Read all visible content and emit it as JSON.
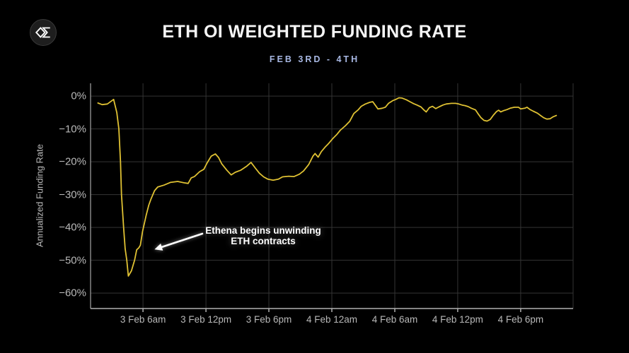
{
  "header": {
    "title": "ETH OI WEIGHTED FUNDING RATE",
    "subtitle": "FEB 3RD - 4TH"
  },
  "icons": {
    "logo": "sigma-diamond-logo"
  },
  "annotation": {
    "line1": "Ethena begins unwinding",
    "line2": "ETH contracts",
    "arrow": {
      "from": [
        11.66,
        -41.9
      ],
      "to": [
        7.1,
        -46.7
      ]
    }
  },
  "colors": {
    "background": "#000000",
    "line": "#dfc133",
    "grid": "#343434",
    "axis_x": "#b0b0b0",
    "axis_y": "#8f8f8f",
    "tick_label": "#b8b8b8",
    "subtitle": "#a7b7e2",
    "annotation": "#ffffff"
  },
  "chart_data": {
    "type": "line",
    "title": "ETH OI WEIGHTED FUNDING RATE",
    "subtitle": "FEB 3RD - 4TH",
    "ylabel": "Annualized Funding Rate",
    "xlabel": "",
    "grid": true,
    "legend": false,
    "x_unit": "hours since 3 Feb 00:00",
    "x_domain": [
      1.0,
      47.0
    ],
    "y_domain": [
      -64.7,
      3.9
    ],
    "x_ticks": [
      {
        "t": 6,
        "label": "3 Feb 6am"
      },
      {
        "t": 12,
        "label": "3 Feb 12pm"
      },
      {
        "t": 18,
        "label": "3 Feb 6pm"
      },
      {
        "t": 24,
        "label": "4 Feb 12am"
      },
      {
        "t": 30,
        "label": "4 Feb 6am"
      },
      {
        "t": 36,
        "label": "4 Feb 12pm"
      },
      {
        "t": 42,
        "label": "4 Feb 6pm"
      }
    ],
    "y_ticks": [
      {
        "v": 0,
        "label": "0%"
      },
      {
        "v": -10,
        "label": "−10%"
      },
      {
        "v": -20,
        "label": "−20%"
      },
      {
        "v": -30,
        "label": "−30%"
      },
      {
        "v": -40,
        "label": "−40%"
      },
      {
        "v": -50,
        "label": "−50%"
      },
      {
        "v": -60,
        "label": "−60%"
      }
    ],
    "points": [
      [
        1.7,
        -2.1
      ],
      [
        2.1,
        -2.6
      ],
      [
        2.6,
        -2.4
      ],
      [
        3.2,
        -1.0
      ],
      [
        3.5,
        -5.0
      ],
      [
        3.7,
        -10.0
      ],
      [
        3.85,
        -20.0
      ],
      [
        3.95,
        -30.0
      ],
      [
        4.15,
        -40.0
      ],
      [
        4.3,
        -46.5
      ],
      [
        4.45,
        -50.0
      ],
      [
        4.6,
        -54.8
      ],
      [
        4.9,
        -53.2
      ],
      [
        5.2,
        -49.9
      ],
      [
        5.4,
        -46.8
      ],
      [
        5.6,
        -46.2
      ],
      [
        5.75,
        -45.4
      ],
      [
        5.95,
        -41.3
      ],
      [
        6.3,
        -36.3
      ],
      [
        6.55,
        -33.2
      ],
      [
        6.75,
        -31.4
      ],
      [
        7.1,
        -28.8
      ],
      [
        7.4,
        -27.7
      ],
      [
        8.0,
        -27.1
      ],
      [
        8.6,
        -26.3
      ],
      [
        9.3,
        -26.0
      ],
      [
        9.9,
        -26.4
      ],
      [
        10.3,
        -26.6
      ],
      [
        10.6,
        -24.9
      ],
      [
        10.9,
        -24.5
      ],
      [
        11.4,
        -23.0
      ],
      [
        11.8,
        -22.3
      ],
      [
        12.1,
        -20.4
      ],
      [
        12.5,
        -18.3
      ],
      [
        12.9,
        -17.6
      ],
      [
        13.2,
        -18.7
      ],
      [
        13.5,
        -20.6
      ],
      [
        14.0,
        -22.6
      ],
      [
        14.4,
        -24.0
      ],
      [
        14.8,
        -23.2
      ],
      [
        15.3,
        -22.6
      ],
      [
        15.9,
        -21.3
      ],
      [
        16.3,
        -20.2
      ],
      [
        16.7,
        -21.9
      ],
      [
        17.1,
        -23.5
      ],
      [
        17.5,
        -24.6
      ],
      [
        17.9,
        -25.3
      ],
      [
        18.4,
        -25.6
      ],
      [
        18.9,
        -25.3
      ],
      [
        19.3,
        -24.6
      ],
      [
        19.9,
        -24.4
      ],
      [
        20.4,
        -24.5
      ],
      [
        20.9,
        -23.8
      ],
      [
        21.3,
        -22.8
      ],
      [
        21.8,
        -20.8
      ],
      [
        22.2,
        -18.3
      ],
      [
        22.4,
        -17.5
      ],
      [
        22.7,
        -18.6
      ],
      [
        23.0,
        -16.9
      ],
      [
        23.4,
        -15.4
      ],
      [
        23.7,
        -14.4
      ],
      [
        24.1,
        -12.9
      ],
      [
        24.5,
        -11.6
      ],
      [
        24.8,
        -10.4
      ],
      [
        25.3,
        -9.0
      ],
      [
        25.7,
        -7.7
      ],
      [
        26.1,
        -5.3
      ],
      [
        26.5,
        -4.2
      ],
      [
        26.8,
        -3.1
      ],
      [
        27.2,
        -2.4
      ],
      [
        27.6,
        -1.9
      ],
      [
        27.9,
        -1.7
      ],
      [
        28.1,
        -2.6
      ],
      [
        28.4,
        -3.9
      ],
      [
        28.8,
        -3.7
      ],
      [
        29.1,
        -3.4
      ],
      [
        29.4,
        -2.2
      ],
      [
        29.8,
        -1.4
      ],
      [
        30.1,
        -1.0
      ],
      [
        30.4,
        -0.5
      ],
      [
        30.7,
        -0.6
      ],
      [
        31.1,
        -1.1
      ],
      [
        31.5,
        -1.8
      ],
      [
        31.8,
        -2.3
      ],
      [
        32.1,
        -2.7
      ],
      [
        32.5,
        -3.3
      ],
      [
        32.8,
        -4.3
      ],
      [
        33.0,
        -4.8
      ],
      [
        33.3,
        -3.5
      ],
      [
        33.6,
        -3.1
      ],
      [
        33.9,
        -3.8
      ],
      [
        34.2,
        -3.3
      ],
      [
        34.6,
        -2.7
      ],
      [
        34.9,
        -2.4
      ],
      [
        35.4,
        -2.2
      ],
      [
        35.8,
        -2.2
      ],
      [
        36.1,
        -2.4
      ],
      [
        36.4,
        -2.7
      ],
      [
        36.7,
        -2.9
      ],
      [
        37.0,
        -3.2
      ],
      [
        37.3,
        -3.7
      ],
      [
        37.7,
        -4.2
      ],
      [
        37.9,
        -5.2
      ],
      [
        38.2,
        -6.5
      ],
      [
        38.5,
        -7.4
      ],
      [
        38.8,
        -7.6
      ],
      [
        39.1,
        -7.1
      ],
      [
        39.4,
        -5.8
      ],
      [
        39.7,
        -4.7
      ],
      [
        39.9,
        -4.3
      ],
      [
        40.1,
        -4.8
      ],
      [
        40.4,
        -4.4
      ],
      [
        40.7,
        -4.1
      ],
      [
        41.0,
        -3.7
      ],
      [
        41.4,
        -3.4
      ],
      [
        41.8,
        -3.4
      ],
      [
        42.0,
        -3.9
      ],
      [
        42.4,
        -3.7
      ],
      [
        42.6,
        -3.4
      ],
      [
        42.9,
        -4.1
      ],
      [
        43.2,
        -4.6
      ],
      [
        43.6,
        -5.2
      ],
      [
        43.9,
        -5.9
      ],
      [
        44.2,
        -6.6
      ],
      [
        44.5,
        -7.0
      ],
      [
        44.8,
        -6.9
      ],
      [
        45.1,
        -6.3
      ],
      [
        45.4,
        -5.9
      ]
    ]
  }
}
